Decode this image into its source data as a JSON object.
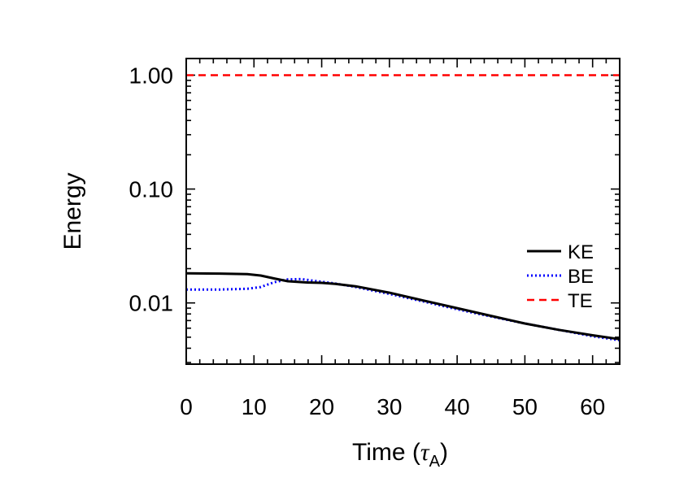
{
  "chart_data": {
    "type": "line",
    "title": "",
    "xlabel": "Time (",
    "xlabel_symbol": "τ",
    "xlabel_subscript": "A",
    "xlabel_close": ")",
    "ylabel": "Energy",
    "xlim": [
      0,
      64
    ],
    "ylim": [
      0.0029,
      1.4
    ],
    "yscale": "log",
    "grid": false,
    "legend_position": "right",
    "x_ticks": [
      {
        "value": 0,
        "label": "0"
      },
      {
        "value": 10,
        "label": "10"
      },
      {
        "value": 20,
        "label": "20"
      },
      {
        "value": 30,
        "label": "30"
      },
      {
        "value": 40,
        "label": "40"
      },
      {
        "value": 50,
        "label": "50"
      },
      {
        "value": 60,
        "label": "60"
      }
    ],
    "y_ticks": [
      {
        "value": 0.01,
        "label": "0.01"
      },
      {
        "value": 0.1,
        "label": "0.10"
      },
      {
        "value": 1.0,
        "label": "1.00"
      }
    ],
    "series": [
      {
        "name": "KE",
        "color": "#000000",
        "dash": "solid",
        "x": [
          0,
          5,
          9,
          11,
          13,
          15,
          18,
          20,
          22,
          25,
          30,
          35,
          40,
          45,
          50,
          55,
          60,
          64
        ],
        "y": [
          0.0182,
          0.0181,
          0.0179,
          0.0174,
          0.0164,
          0.0155,
          0.0151,
          0.015,
          0.0147,
          0.014,
          0.0123,
          0.0105,
          0.009,
          0.0077,
          0.0066,
          0.0058,
          0.0052,
          0.0048
        ]
      },
      {
        "name": "BE",
        "color": "#0000ff",
        "dash": "dotted",
        "x": [
          0,
          5,
          9,
          11,
          13,
          15,
          17,
          19,
          22,
          25,
          30,
          35,
          40,
          45,
          50,
          55,
          60,
          64
        ],
        "y": [
          0.0131,
          0.0131,
          0.0133,
          0.0138,
          0.0152,
          0.0161,
          0.0162,
          0.0156,
          0.0148,
          0.0138,
          0.012,
          0.0103,
          0.0088,
          0.0076,
          0.0066,
          0.0058,
          0.0051,
          0.0047
        ]
      },
      {
        "name": "TE",
        "color": "#ff0000",
        "dash": "dashed",
        "x": [
          0,
          64
        ],
        "y": [
          1.0,
          1.0
        ]
      }
    ]
  }
}
